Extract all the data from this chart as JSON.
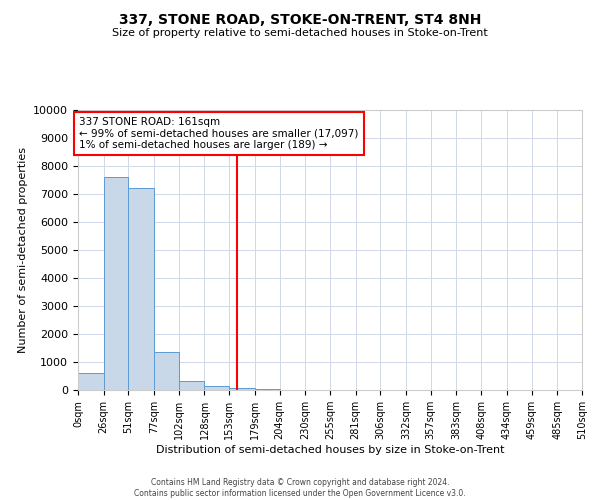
{
  "title": "337, STONE ROAD, STOKE-ON-TRENT, ST4 8NH",
  "subtitle": "Size of property relative to semi-detached houses in Stoke-on-Trent",
  "xlabel": "Distribution of semi-detached houses by size in Stoke-on-Trent",
  "ylabel": "Number of semi-detached properties",
  "footnote": "Contains HM Land Registry data © Crown copyright and database right 2024.\nContains public sector information licensed under the Open Government Licence v3.0.",
  "bin_edges": [
    0,
    26,
    51,
    77,
    102,
    128,
    153,
    179,
    204,
    230,
    255,
    281,
    306,
    332,
    357,
    383,
    408,
    434,
    459,
    485,
    510
  ],
  "bin_labels": [
    "0sqm",
    "26sqm",
    "51sqm",
    "77sqm",
    "102sqm",
    "128sqm",
    "153sqm",
    "179sqm",
    "204sqm",
    "230sqm",
    "255sqm",
    "281sqm",
    "306sqm",
    "332sqm",
    "357sqm",
    "383sqm",
    "408sqm",
    "434sqm",
    "459sqm",
    "485sqm",
    "510sqm"
  ],
  "counts": [
    600,
    7600,
    7200,
    1350,
    325,
    150,
    80,
    50,
    0,
    0,
    0,
    0,
    0,
    0,
    0,
    0,
    0,
    0,
    0,
    0
  ],
  "property_size": 161,
  "property_label": "337 STONE ROAD: 161sqm",
  "pct_smaller": 99,
  "n_smaller": 17097,
  "pct_larger": 1,
  "n_larger": 189,
  "bar_color": "#c8d8e8",
  "bar_edge_color": "#5b9bd5",
  "vline_color": "red",
  "annotation_box_color": "red",
  "ylim": [
    0,
    10000
  ],
  "yticks": [
    0,
    1000,
    2000,
    3000,
    4000,
    5000,
    6000,
    7000,
    8000,
    9000,
    10000
  ],
  "background_color": "#ffffff",
  "grid_color": "#d0d8e8"
}
